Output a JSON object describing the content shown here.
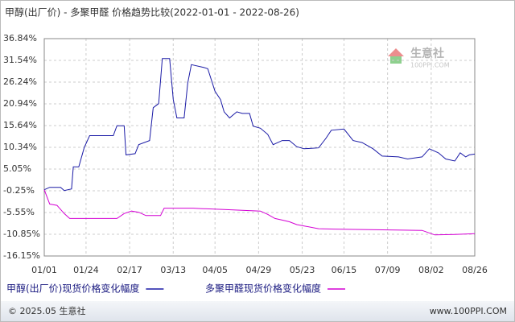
{
  "chart_data": {
    "type": "line",
    "title": "甲醇(出厂价) - 多聚甲醛 价格趋势比较(2022-01-01 - 2022-08-26)",
    "xlim": [
      "01/01",
      "08/26"
    ],
    "xticks": [
      "01/01",
      "01/24",
      "02/17",
      "03/13",
      "04/05",
      "04/29",
      "05/23",
      "06/15",
      "07/09",
      "08/02",
      "08/26"
    ],
    "ylim": [
      -16.15,
      36.84
    ],
    "yticks": [
      {
        "value": 36.84,
        "label": "36.84%"
      },
      {
        "value": 31.54,
        "label": "31.54%"
      },
      {
        "value": 26.24,
        "label": "26.24%"
      },
      {
        "value": 20.94,
        "label": "20.94%"
      },
      {
        "value": 15.64,
        "label": "15.64%"
      },
      {
        "value": 10.34,
        "label": "10.34%"
      },
      {
        "value": 5.05,
        "label": "5.05%"
      },
      {
        "value": -0.25,
        "label": "-0.25%"
      },
      {
        "value": -5.55,
        "label": "-5.55%"
      },
      {
        "value": -10.85,
        "label": "-10.85%"
      },
      {
        "value": -16.15,
        "label": "-16.15%"
      }
    ],
    "grid": true,
    "series": [
      {
        "name": "甲醇(出厂价)现货价格变化幅度",
        "color": "#1a1aa6",
        "x": [
          "01/01",
          "01/04",
          "01/10",
          "01/12",
          "01/16",
          "01/17",
          "01/20",
          "01/23",
          "01/26",
          "02/08",
          "02/10",
          "02/14",
          "02/15",
          "02/20",
          "02/22",
          "02/28",
          "03/02",
          "03/05",
          "03/07",
          "03/11",
          "03/13",
          "03/15",
          "03/19",
          "03/21",
          "03/23",
          "03/30",
          "04/01",
          "04/05",
          "04/08",
          "04/10",
          "04/13",
          "04/17",
          "04/20",
          "04/24",
          "04/26",
          "04/30",
          "05/04",
          "05/07",
          "05/12",
          "05/16",
          "05/20",
          "05/24",
          "06/01",
          "06/05",
          "06/08",
          "06/15",
          "06/20",
          "06/25",
          "07/01",
          "07/06",
          "07/15",
          "07/20",
          "07/28",
          "08/01",
          "08/06",
          "08/10",
          "08/15",
          "08/18",
          "08/21",
          "08/23",
          "08/26"
        ],
        "values": [
          0.0,
          0.6,
          0.6,
          -0.2,
          0.2,
          5.6,
          5.6,
          10.3,
          13.2,
          13.2,
          15.6,
          15.6,
          8.5,
          8.8,
          11,
          12,
          20,
          21,
          32,
          32,
          22,
          17.5,
          17.5,
          26,
          30.5,
          29.8,
          29.5,
          24,
          22,
          19,
          17.5,
          19,
          18.6,
          18.6,
          15.5,
          15,
          13.5,
          11,
          12,
          12,
          10.5,
          10,
          10.2,
          12.5,
          14.5,
          14.8,
          12,
          11.5,
          10,
          8.2,
          8,
          7.5,
          8,
          10,
          9,
          7.5,
          7,
          9,
          8,
          8.5,
          8.7
        ]
      },
      {
        "name": "多聚甲醛现货价格变化幅度",
        "color": "#d400d4",
        "x": [
          "01/01",
          "01/04",
          "01/08",
          "01/12",
          "01/15",
          "02/10",
          "02/14",
          "02/18",
          "02/22",
          "02/26",
          "03/06",
          "03/08",
          "03/24",
          "03/28",
          "04/10",
          "04/20",
          "04/30",
          "05/04",
          "05/08",
          "05/12",
          "05/16",
          "05/20",
          "06/01",
          "06/10",
          "07/28",
          "08/04",
          "08/15",
          "08/26"
        ],
        "values": [
          0,
          -3.5,
          -3.8,
          -5.8,
          -7.0,
          -7.0,
          -5.8,
          -5.2,
          -5.5,
          -6.3,
          -6.3,
          -4.5,
          -4.5,
          -4.6,
          -4.8,
          -5.0,
          -5.2,
          -6.0,
          -7.0,
          -7.4,
          -7.8,
          -8.5,
          -9.5,
          -9.6,
          -9.9,
          -11.0,
          -10.9,
          -10.7
        ]
      }
    ]
  },
  "watermark": {
    "brand": "生意社",
    "site": "100PPI.COM"
  },
  "footer": {
    "copyright": "© 2025.05 生意社",
    "url": "www.100PPI.COM"
  }
}
